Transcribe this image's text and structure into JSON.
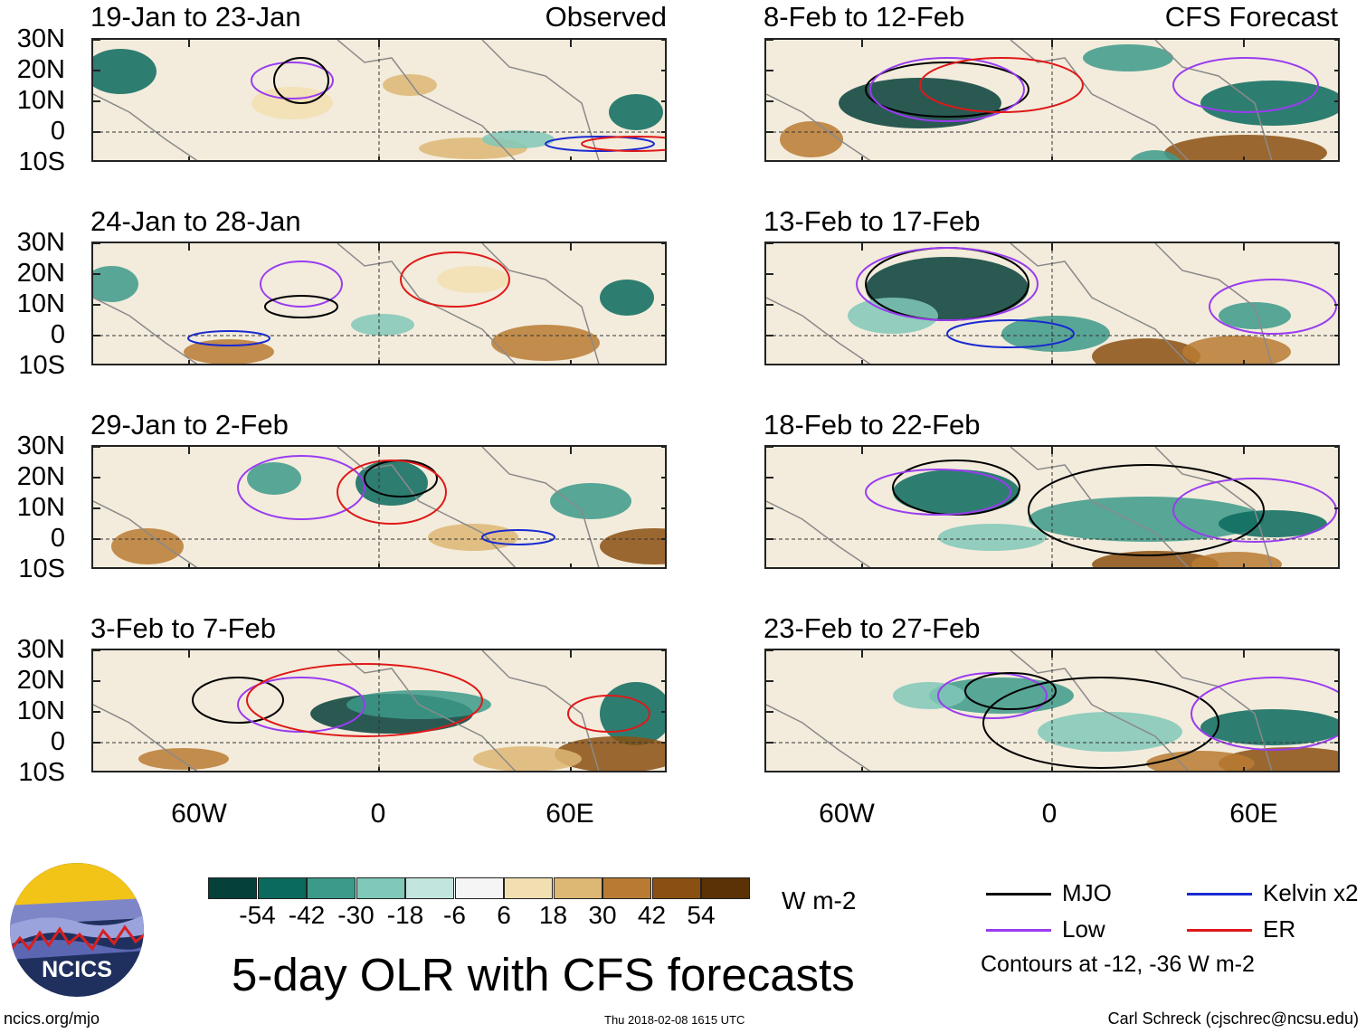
{
  "panels": {
    "left_header_label": "Observed",
    "right_header_label": "CFS Forecast",
    "left": [
      {
        "title": "19-Jan to 23-Jan"
      },
      {
        "title": "24-Jan to 28-Jan"
      },
      {
        "title": "29-Jan to 2-Feb"
      },
      {
        "title": "3-Feb to 7-Feb"
      }
    ],
    "right": [
      {
        "title": "8-Feb to 12-Feb"
      },
      {
        "title": "13-Feb to 17-Feb"
      },
      {
        "title": "18-Feb to 22-Feb"
      },
      {
        "title": "23-Feb to 27-Feb"
      }
    ]
  },
  "axes": {
    "lat_labels": [
      "30N",
      "20N",
      "10N",
      "0",
      "10S"
    ],
    "lon_labels": [
      "60W",
      "0",
      "60E"
    ]
  },
  "colorbar": {
    "labels": [
      "-54",
      "-42",
      "-30",
      "-18",
      "-6",
      "6",
      "18",
      "30",
      "42",
      "54"
    ],
    "colors": [
      "#06403a",
      "#0b6a5e",
      "#3c9a8a",
      "#80c8b8",
      "#c2e6dd",
      "#f5f5f5",
      "#f2dfb1",
      "#ddb774",
      "#b97b33",
      "#8a5012",
      "#5a3205"
    ],
    "units": "W m-2"
  },
  "legend": {
    "items": [
      {
        "label": "MJO",
        "color": "#000000"
      },
      {
        "label": "Kelvin x2",
        "color": "#1a2ad0"
      },
      {
        "label": "Low",
        "color": "#9a3cf0"
      },
      {
        "label": "ER",
        "color": "#e01818"
      }
    ],
    "note": "Contours at -12, -36 W m-2"
  },
  "logo": {
    "text": "NCICS"
  },
  "main_title": "5-day OLR with CFS forecasts",
  "footer": {
    "url": "ncics.org/mjo",
    "timestamp": "Thu 2018-02-08 1615 UTC",
    "credit": "Carl Schreck (cjschrec@ncsu.edu)"
  }
}
